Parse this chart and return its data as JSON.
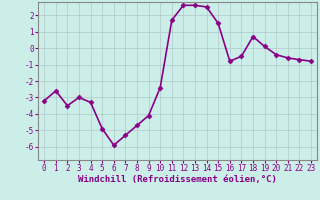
{
  "x": [
    0,
    1,
    2,
    3,
    4,
    5,
    6,
    7,
    8,
    9,
    10,
    11,
    12,
    13,
    14,
    15,
    16,
    17,
    18,
    19,
    20,
    21,
    22,
    23
  ],
  "y": [
    -3.2,
    -2.6,
    -3.5,
    -3.0,
    -3.3,
    -4.9,
    -5.9,
    -5.3,
    -4.7,
    -4.1,
    -2.4,
    1.7,
    2.6,
    2.6,
    2.5,
    1.5,
    -0.8,
    -0.5,
    0.7,
    0.1,
    -0.4,
    -0.6,
    -0.7,
    -0.8
  ],
  "line_color": "#880088",
  "marker": "D",
  "marker_size": 2.5,
  "xlabel": "Windchill (Refroidissement éolien,°C)",
  "xlim": [
    -0.5,
    23.5
  ],
  "ylim": [
    -6.8,
    2.8
  ],
  "yticks": [
    -6,
    -5,
    -4,
    -3,
    -2,
    -1,
    0,
    1,
    2
  ],
  "xticks": [
    0,
    1,
    2,
    3,
    4,
    5,
    6,
    7,
    8,
    9,
    10,
    11,
    12,
    13,
    14,
    15,
    16,
    17,
    18,
    19,
    20,
    21,
    22,
    23
  ],
  "grid_color": "#b0c8c8",
  "bg_color": "#cceee8",
  "spine_color": "#888888",
  "line_width": 1.2,
  "tick_fontsize": 5.5,
  "xlabel_fontsize": 6.5
}
